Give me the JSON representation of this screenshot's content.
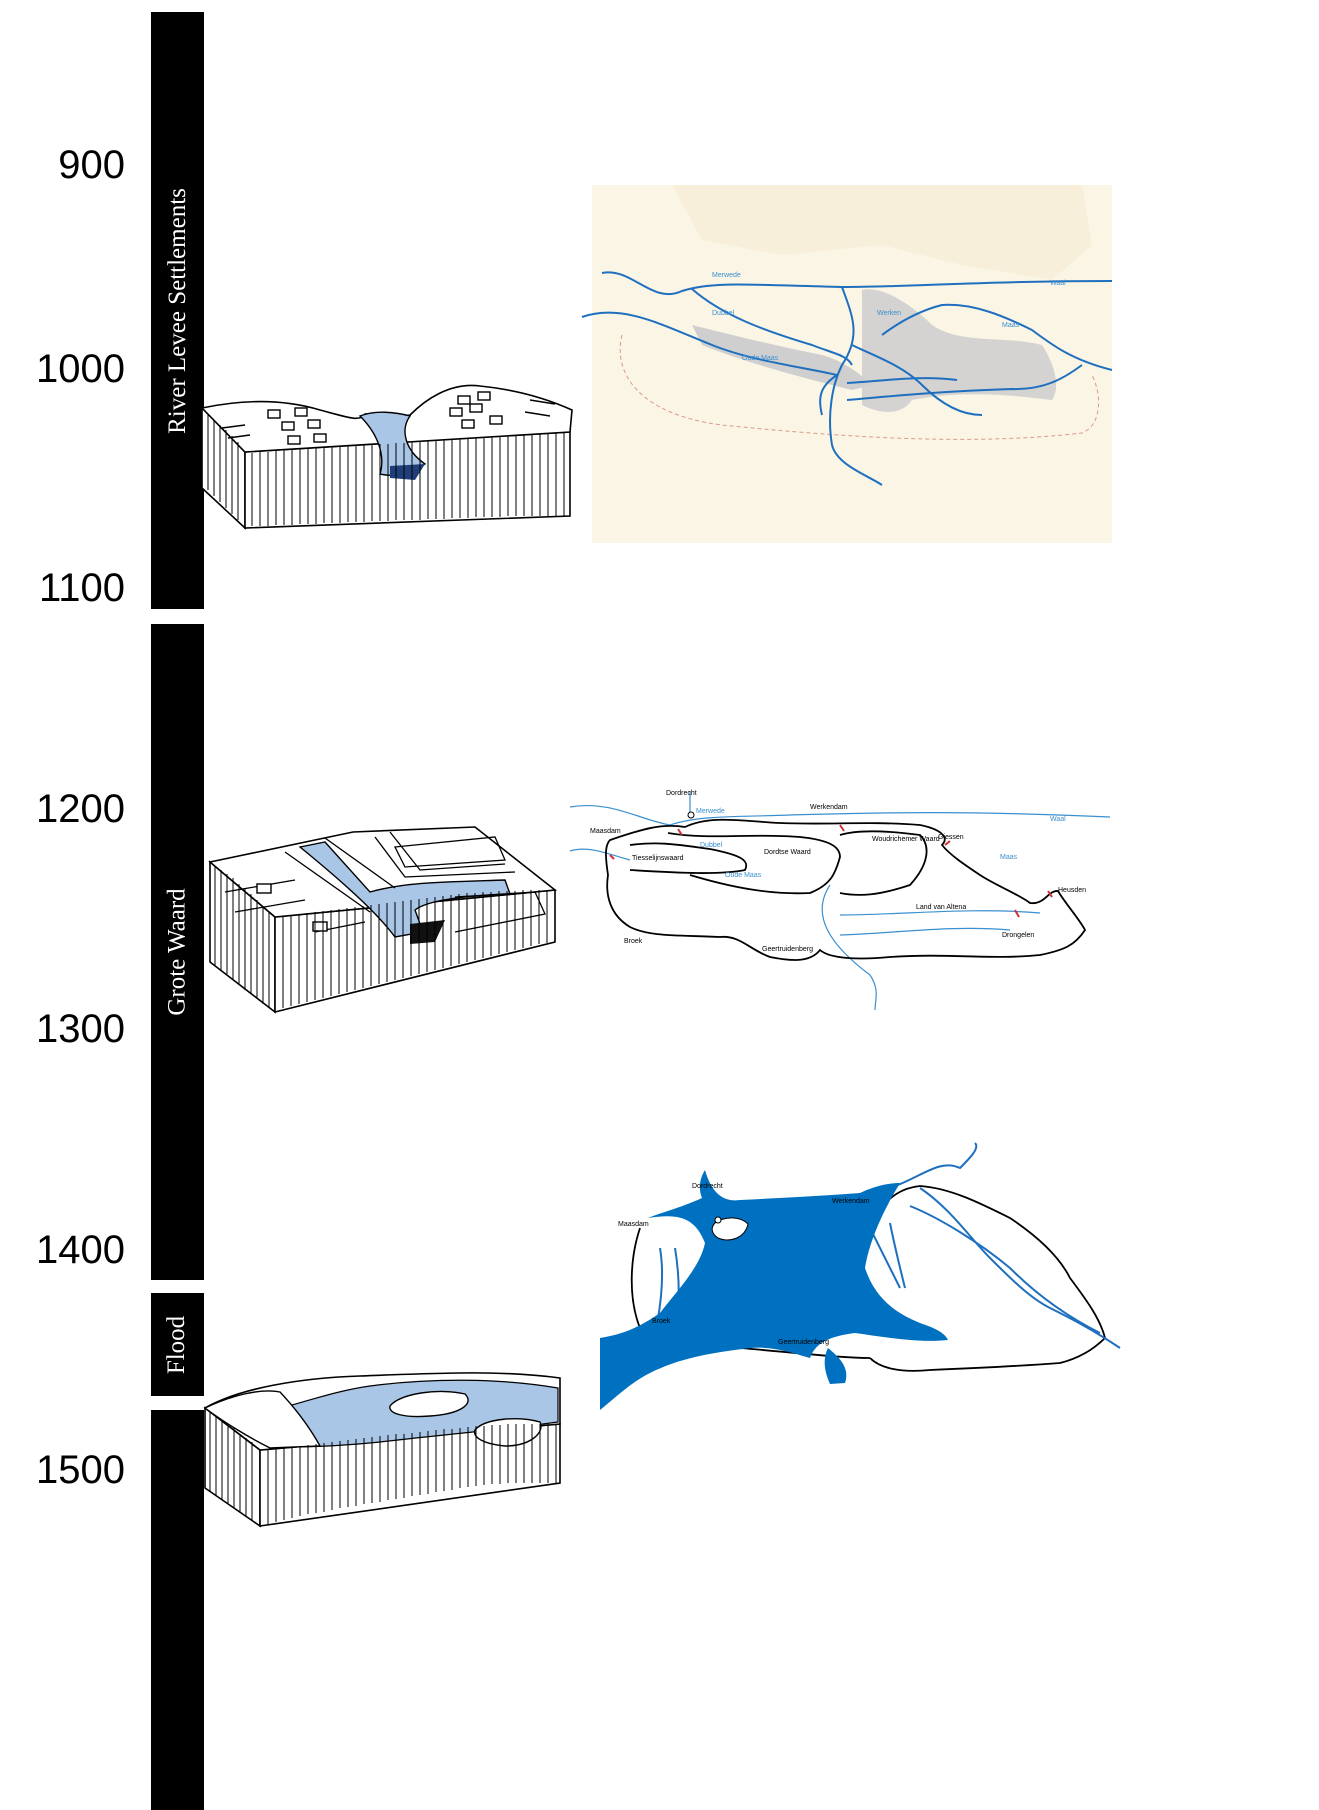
{
  "timeline": {
    "years": [
      "900",
      "1000",
      "1100",
      "1200",
      "1300",
      "1400",
      "1500"
    ],
    "periods": [
      {
        "label": "River Levee Settlements"
      },
      {
        "label": "Grote Waard"
      },
      {
        "label": "Flood"
      },
      {
        "label": ""
      }
    ]
  },
  "maps": {
    "levee": {
      "rivers": {
        "merwede": "Merwede",
        "waal": "Waal",
        "maas": "Maas",
        "dubbel": "Dubbel",
        "oude_maas": "Oude Maas",
        "werken": "Werken"
      }
    },
    "grote_waard": {
      "places": {
        "dordrecht": "Dordrecht",
        "werkendam": "Werkendam",
        "maasdam": "Maasdam",
        "tiesselijnswaard": "Tiesselijnswaard",
        "dordtse_waard": "Dordtse Waard",
        "woudrichemer_waard": "Woudrichemer Waard",
        "giessen": "Giessen",
        "land_van_altena": "Land van Altena",
        "heusden": "Heusden",
        "drongelen": "Drongelen",
        "broek": "Broek",
        "geertruidenberg": "Geertruidenberg"
      },
      "rivers": {
        "merwede": "Merwede",
        "waal": "Waal",
        "maas": "Maas",
        "dubbel": "Dubbel",
        "oude_maas": "Oude Maas"
      }
    },
    "flood": {
      "places": {
        "dordrecht": "Dordrecht",
        "werkendam": "Werkendam",
        "maasdam": "Maasdam",
        "broek": "Broek",
        "geertruidenberg": "Geertruidenberg"
      }
    }
  },
  "colors": {
    "bar": "#000000",
    "water_light": "#a9c6e6",
    "water_flood": "#0070c0",
    "river_line": "#1f6fbf",
    "channel_gray": "#cfcfcf",
    "map_bg": "#fbf5e6"
  }
}
